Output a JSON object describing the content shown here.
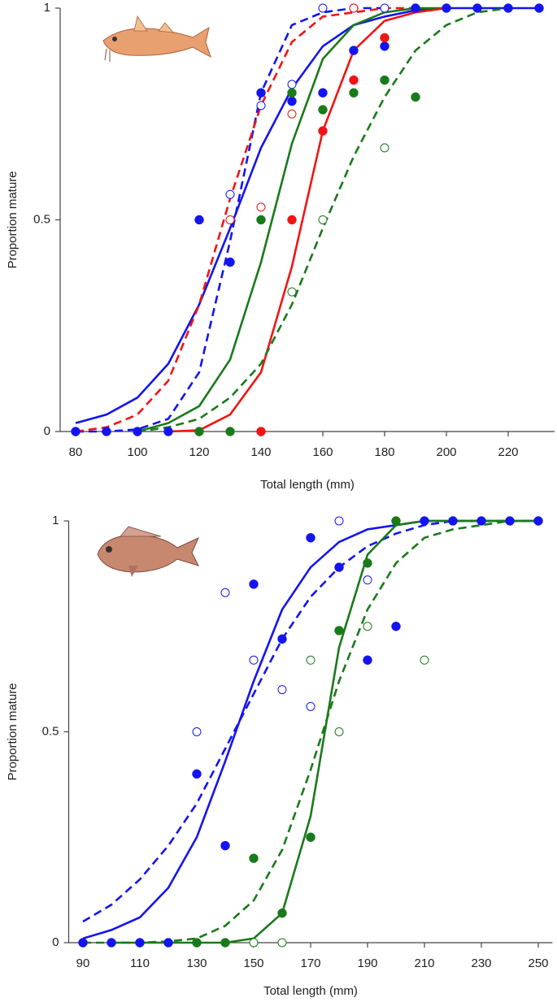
{
  "chart_data": [
    {
      "type": "line",
      "x_label": "Total length (mm)",
      "y_label": "Proportion mature",
      "xlim": [
        75,
        235
      ],
      "xticks": [
        80,
        100,
        120,
        140,
        160,
        180,
        200,
        220
      ],
      "ylim": [
        0,
        1
      ],
      "yticks": [
        0,
        0.5,
        1
      ],
      "series": [
        {
          "color": "#1414f0",
          "style": "solid",
          "x": [
            80,
            90,
            100,
            110,
            120,
            130,
            140,
            150,
            160,
            170,
            180,
            190,
            200,
            210,
            220,
            230
          ],
          "values": [
            0.02,
            0.04,
            0.08,
            0.16,
            0.3,
            0.48,
            0.67,
            0.81,
            0.91,
            0.96,
            0.98,
            0.995,
            1,
            1,
            1,
            1
          ]
        },
        {
          "color": "#1414f0",
          "style": "dashed",
          "x": [
            80,
            90,
            100,
            110,
            120,
            130,
            140,
            150,
            160,
            170,
            180
          ],
          "values": [
            0,
            0,
            0.005,
            0.03,
            0.14,
            0.45,
            0.8,
            0.96,
            0.99,
            1,
            1
          ]
        },
        {
          "color": "#f01414",
          "style": "dashed",
          "x": [
            80,
            90,
            100,
            110,
            120,
            130,
            140,
            150,
            160,
            170,
            180,
            190
          ],
          "values": [
            0,
            0.01,
            0.04,
            0.12,
            0.3,
            0.55,
            0.77,
            0.92,
            0.98,
            0.99,
            1,
            1
          ]
        },
        {
          "color": "#1a7a1a",
          "style": "solid",
          "x": [
            100,
            110,
            120,
            130,
            140,
            150,
            160,
            170,
            180,
            190,
            200
          ],
          "values": [
            0,
            0.02,
            0.06,
            0.17,
            0.4,
            0.68,
            0.88,
            0.96,
            0.99,
            1,
            1
          ]
        },
        {
          "color": "#f01414",
          "style": "solid",
          "x": [
            110,
            120,
            130,
            140,
            150,
            160,
            170,
            180,
            190,
            200
          ],
          "values": [
            0,
            0.003,
            0.04,
            0.14,
            0.39,
            0.71,
            0.9,
            0.97,
            0.99,
            1
          ]
        },
        {
          "color": "#1a7a1a",
          "style": "dashed",
          "x": [
            100,
            110,
            120,
            130,
            140,
            150,
            160,
            170,
            180,
            190,
            200,
            210,
            220
          ],
          "values": [
            0,
            0.01,
            0.03,
            0.08,
            0.16,
            0.3,
            0.48,
            0.65,
            0.79,
            0.9,
            0.96,
            0.99,
            1
          ]
        },
        {
          "color": "#1414f0",
          "marker": "filled",
          "x": [
            80,
            90,
            100,
            110,
            120,
            130,
            140,
            150,
            160,
            170,
            180,
            190,
            200,
            210,
            220,
            230
          ],
          "values": [
            0,
            0,
            0,
            0,
            0.5,
            0.4,
            0.8,
            0.78,
            0.8,
            0.9,
            0.91,
            1,
            1,
            1,
            1,
            1
          ]
        },
        {
          "color": "#1414f0",
          "marker": "open",
          "x": [
            130,
            140,
            150,
            160,
            170,
            180
          ],
          "values": [
            0.56,
            0.77,
            0.82,
            1,
            1,
            1
          ]
        },
        {
          "color": "#f01414",
          "marker": "filled",
          "x": [
            140,
            150,
            160,
            170,
            180
          ],
          "values": [
            0,
            0.5,
            0.71,
            0.83,
            0.93
          ]
        },
        {
          "color": "#f01414",
          "marker": "open",
          "x": [
            130,
            140,
            150,
            170
          ],
          "values": [
            0.5,
            0.53,
            0.75,
            1
          ]
        },
        {
          "color": "#1a7a1a",
          "marker": "filled",
          "x": [
            120,
            130,
            140,
            150,
            160,
            170,
            180,
            190
          ],
          "values": [
            0,
            0,
            0.5,
            0.8,
            0.76,
            0.8,
            0.83,
            0.79
          ]
        },
        {
          "color": "#1a7a1a",
          "marker": "open",
          "x": [
            150,
            160,
            180
          ],
          "values": [
            0.33,
            0.5,
            0.67
          ]
        }
      ]
    },
    {
      "type": "line",
      "x_label": "Total length (mm)",
      "y_label": "Proportion mature",
      "xlim": [
        85,
        255
      ],
      "xticks": [
        90,
        110,
        130,
        150,
        170,
        190,
        210,
        230,
        250
      ],
      "ylim": [
        0,
        1
      ],
      "yticks": [
        0,
        0.5,
        1
      ],
      "series": [
        {
          "color": "#1414f0",
          "style": "solid",
          "x": [
            90,
            100,
            110,
            120,
            130,
            140,
            150,
            160,
            170,
            180,
            190,
            200,
            210,
            220,
            230,
            240,
            250
          ],
          "values": [
            0.01,
            0.03,
            0.06,
            0.13,
            0.25,
            0.43,
            0.62,
            0.79,
            0.89,
            0.95,
            0.98,
            0.99,
            1,
            1,
            1,
            1,
            1
          ]
        },
        {
          "color": "#1414f0",
          "style": "dashed",
          "x": [
            90,
            100,
            110,
            120,
            130,
            140,
            150,
            160,
            170,
            180,
            190,
            200,
            210,
            220,
            230,
            240,
            250
          ],
          "values": [
            0.05,
            0.09,
            0.15,
            0.23,
            0.33,
            0.46,
            0.59,
            0.72,
            0.82,
            0.89,
            0.94,
            0.97,
            0.99,
            1,
            1,
            1,
            1
          ]
        },
        {
          "color": "#1a7a1a",
          "style": "solid",
          "x": [
            100,
            110,
            120,
            130,
            140,
            150,
            160,
            170,
            180,
            190,
            200,
            210,
            220,
            230,
            240,
            250
          ],
          "values": [
            0,
            0,
            0,
            0,
            0,
            0.01,
            0.07,
            0.3,
            0.7,
            0.92,
            0.99,
            1,
            1,
            1,
            1,
            1
          ]
        },
        {
          "color": "#1a7a1a",
          "style": "dashed",
          "x": [
            90,
            100,
            110,
            120,
            130,
            140,
            150,
            160,
            170,
            180,
            190,
            200,
            210,
            220,
            230,
            240,
            250
          ],
          "values": [
            0,
            0,
            0,
            0.003,
            0.01,
            0.04,
            0.1,
            0.22,
            0.41,
            0.62,
            0.79,
            0.9,
            0.96,
            0.98,
            0.99,
            1,
            1
          ]
        },
        {
          "color": "#1414f0",
          "marker": "filled",
          "x": [
            90,
            100,
            110,
            120,
            130,
            140,
            150,
            160,
            170,
            180,
            190,
            200,
            210,
            220,
            230,
            240,
            250
          ],
          "values": [
            0,
            0,
            0,
            0,
            0.4,
            0.23,
            0.85,
            0.72,
            0.96,
            0.89,
            0.67,
            0.75,
            1,
            1,
            1,
            1,
            1
          ]
        },
        {
          "color": "#1414f0",
          "marker": "open",
          "x": [
            130,
            140,
            150,
            160,
            170,
            180,
            190
          ],
          "values": [
            0.5,
            0.83,
            0.67,
            0.6,
            0.56,
            1,
            0.86
          ]
        },
        {
          "color": "#1a7a1a",
          "marker": "filled",
          "x": [
            130,
            140,
            150,
            160,
            170,
            180,
            190,
            200
          ],
          "values": [
            0,
            0,
            0.2,
            0.07,
            0.25,
            0.74,
            0.9,
            1
          ]
        },
        {
          "color": "#1a7a1a",
          "marker": "open",
          "x": [
            150,
            160,
            170,
            180,
            190,
            210
          ],
          "values": [
            0,
            0,
            0.67,
            0.5,
            0.75,
            0.67
          ]
        }
      ]
    }
  ]
}
